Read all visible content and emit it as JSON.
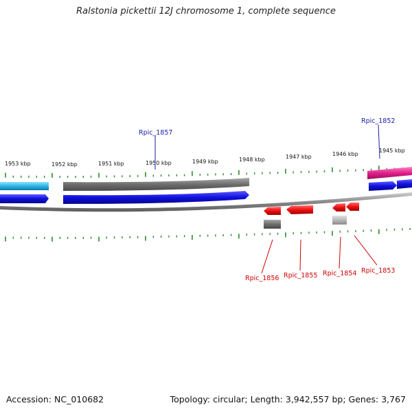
{
  "title": "Ralstonia pickettii 12J chromosome 1, complete sequence",
  "footer": {
    "accession": "Accession: NC_010682",
    "summary": "Topology: circular; Length: 3,942,557 bp; Genes: 3,767"
  },
  "scale_labels": [
    "1953 kbp",
    "1952 kbp",
    "1951 kbp",
    "1950 kbp",
    "1949 kbp",
    "1948 kbp",
    "1947 kbp",
    "1946 kbp",
    "1945 kbp"
  ],
  "colors": {
    "tick": "#2a8a2a",
    "forward_label": "#1a1aa8",
    "reverse_label": "#cc0000",
    "backbone": "#8a8a8a",
    "cyan_gene": "#29b6e8",
    "grey_gene": "#6e6e6e",
    "blue_gene": "#1010e0",
    "magenta_gene": "#e0208a",
    "red_gene": "#ee1010",
    "light_grey_gene": "#b8b8b8"
  },
  "genes": {
    "forward": [
      "Rpic_1857",
      "Rpic_1852"
    ],
    "reverse": [
      "Rpic_1856",
      "Rpic_1855",
      "Rpic_1854",
      "Rpic_1853"
    ]
  }
}
